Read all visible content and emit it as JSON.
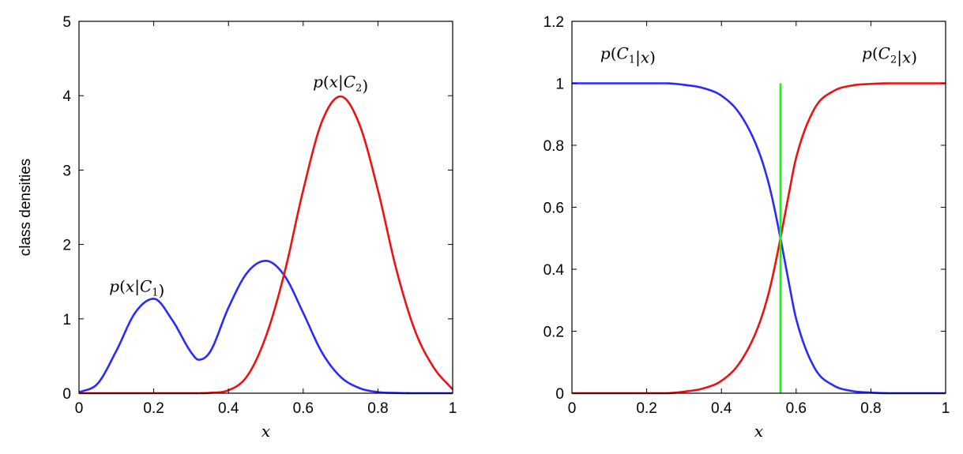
{
  "chart_data": [
    {
      "type": "line",
      "xlabel": "x",
      "ylabel": "class densities",
      "xlim": [
        0,
        1
      ],
      "ylim": [
        0,
        5
      ],
      "xticks": [
        "0",
        "0.2",
        "0.4",
        "0.6",
        "0.8",
        "1"
      ],
      "yticks": [
        "0",
        "1",
        "2",
        "3",
        "4",
        "5"
      ],
      "grid": false,
      "x": [
        0,
        0.05,
        0.1,
        0.15,
        0.2,
        0.25,
        0.3,
        0.32,
        0.35,
        0.4,
        0.45,
        0.5,
        0.55,
        0.6,
        0.65,
        0.7,
        0.75,
        0.8,
        0.85,
        0.9,
        0.95,
        1.0
      ],
      "series": [
        {
          "label": "p(x|C1)",
          "color": "#2a2aff",
          "values": [
            0.01,
            0.13,
            0.57,
            1.08,
            1.27,
            0.98,
            0.55,
            0.45,
            0.55,
            1.15,
            1.62,
            1.78,
            1.58,
            1.08,
            0.55,
            0.22,
            0.07,
            0.015,
            0.003,
            0.0,
            0.0,
            0.0
          ]
        },
        {
          "label": "p(x|C2)",
          "color": "#ee1111",
          "values": [
            0,
            0,
            0,
            0,
            0,
            0,
            0,
            0,
            0.005,
            0.04,
            0.23,
            0.76,
            1.62,
            2.73,
            3.65,
            3.99,
            3.62,
            2.73,
            1.65,
            0.83,
            0.34,
            0.05
          ]
        }
      ],
      "annotations": [
        {
          "label": "p(x|C1)",
          "x": 0.155,
          "y": 1.45
        },
        {
          "label": "p(x|C2)",
          "x": 0.7,
          "y": 4.2
        }
      ]
    },
    {
      "type": "line",
      "xlabel": "x",
      "ylabel": "",
      "xlim": [
        0,
        1
      ],
      "ylim": [
        0,
        1.2
      ],
      "xticks": [
        "0",
        "0.2",
        "0.4",
        "0.6",
        "0.8",
        "1"
      ],
      "yticks": [
        "0",
        "0.2",
        "0.4",
        "0.6",
        "0.8",
        "1",
        "1.2"
      ],
      "grid": false,
      "x": [
        0,
        0.1,
        0.2,
        0.25,
        0.3,
        0.35,
        0.4,
        0.45,
        0.5,
        0.53,
        0.558,
        0.58,
        0.6,
        0.65,
        0.7,
        0.75,
        0.8,
        0.85,
        0.9,
        0.95,
        1.0
      ],
      "series": [
        {
          "label": "p(C1|x)",
          "color": "#2a2aff",
          "values": [
            1.0,
            1.0,
            1.0,
            1.0,
            0.995,
            0.985,
            0.96,
            0.9,
            0.78,
            0.66,
            0.5,
            0.36,
            0.24,
            0.08,
            0.025,
            0.007,
            0.002,
            0.0,
            0.0,
            0.0,
            0.0
          ]
        },
        {
          "label": "p(C2|x)",
          "color": "#ee1111",
          "values": [
            0.0,
            0.0,
            0.0,
            0.0,
            0.005,
            0.015,
            0.04,
            0.1,
            0.22,
            0.34,
            0.5,
            0.64,
            0.76,
            0.92,
            0.975,
            0.993,
            0.998,
            1.0,
            1.0,
            1.0,
            1.0
          ]
        },
        {
          "label": "decision boundary",
          "color": "#22ee22",
          "x": [
            0.558,
            0.558
          ],
          "values": [
            0,
            1.0
          ]
        }
      ],
      "annotations": [
        {
          "label": "p(C1|x)",
          "x": 0.15,
          "y": 1.1
        },
        {
          "label": "p(C2|x)",
          "x": 0.85,
          "y": 1.1
        }
      ]
    }
  ]
}
